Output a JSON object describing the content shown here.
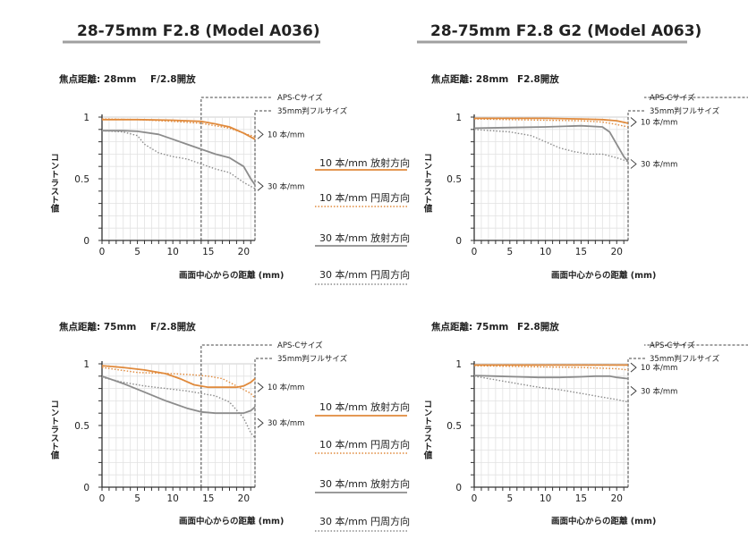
{
  "headers": {
    "left": "28-75mm F2.8 (Model A036)",
    "right": "28-75mm F2.8 G2 (Model A063)"
  },
  "legend": {
    "items": [
      {
        "label": "10 本/mm 放射方向",
        "color": "#e08a3c",
        "style": "solid"
      },
      {
        "label": "10 本/mm 円周方向",
        "color": "#e08a3c",
        "style": "dotted"
      },
      {
        "label": "30 本/mm 放射方向",
        "color": "#8c8c8c",
        "style": "solid"
      },
      {
        "label": "30 本/mm 円周方向",
        "color": "#8c8c8c",
        "style": "dotted"
      }
    ]
  },
  "chart_data": [
    {
      "type": "line",
      "title": "焦点距離: 28mm",
      "subtitle": "F/2.8開放",
      "xlabel": "画面中心からの距離 (mm)",
      "ylabel": "コントラスト値",
      "xlim": [
        0,
        21.6
      ],
      "ylim": [
        0,
        1
      ],
      "xticks": [
        0,
        5,
        10,
        15,
        20
      ],
      "yticks": [
        0,
        0.5,
        1
      ],
      "ytick_labels": [
        "0",
        "0.5",
        "1"
      ],
      "aps_c_label": "APS-Cサイズ",
      "full_frame_label": "35mm判フルサイズ",
      "aps_c_limit": 14,
      "full_frame_limit": 21.6,
      "annotations": [
        {
          "text": "10 本/mm",
          "y": 0.86
        },
        {
          "text": "30 本/mm",
          "y": 0.44
        }
      ],
      "series": [
        {
          "color": "#e08a3c",
          "style": "solid",
          "x": [
            0,
            5,
            10,
            14,
            16,
            18,
            20,
            21.6
          ],
          "y": [
            0.98,
            0.98,
            0.975,
            0.965,
            0.945,
            0.92,
            0.87,
            0.82
          ]
        },
        {
          "color": "#e08a3c",
          "style": "dotted",
          "x": [
            0,
            5,
            10,
            14,
            16,
            18,
            20,
            21.6
          ],
          "y": [
            0.985,
            0.98,
            0.965,
            0.95,
            0.93,
            0.91,
            0.87,
            0.84
          ]
        },
        {
          "color": "#8c8c8c",
          "style": "solid",
          "x": [
            0,
            3,
            5,
            8,
            10,
            12,
            14,
            16,
            18,
            20,
            21,
            21.6
          ],
          "y": [
            0.89,
            0.89,
            0.885,
            0.86,
            0.82,
            0.78,
            0.74,
            0.7,
            0.67,
            0.6,
            0.5,
            0.45
          ]
        },
        {
          "color": "#8c8c8c",
          "style": "dotted",
          "x": [
            0,
            3,
            5,
            6,
            8,
            10,
            12,
            14,
            16,
            18,
            20,
            21.6
          ],
          "y": [
            0.89,
            0.88,
            0.85,
            0.78,
            0.71,
            0.68,
            0.66,
            0.62,
            0.58,
            0.55,
            0.47,
            0.42
          ]
        }
      ]
    },
    {
      "type": "line",
      "title": "焦点距離: 28mm",
      "subtitle": "F2.8開放",
      "xlabel": "画面中心からの距離 (mm)",
      "ylabel": "コントラスト値",
      "xlim": [
        0,
        21.6
      ],
      "ylim": [
        0,
        1
      ],
      "xticks": [
        0,
        5,
        10,
        15,
        20
      ],
      "yticks": [
        0,
        0.5,
        1
      ],
      "ytick_labels": [
        "0",
        "0.5",
        "1"
      ],
      "aps_c_label": "APS-Cサイズ",
      "full_frame_label": "35mm判フルサイズ",
      "aps_c_limit": 14,
      "full_frame_limit": 21.6,
      "annotations": [
        {
          "text": "10 本/mm",
          "y": 0.96
        },
        {
          "text": "30 本/mm",
          "y": 0.62
        }
      ],
      "series": [
        {
          "color": "#e08a3c",
          "style": "solid",
          "x": [
            0,
            5,
            10,
            15,
            18,
            20,
            21.6
          ],
          "y": [
            0.99,
            0.99,
            0.99,
            0.985,
            0.98,
            0.97,
            0.95
          ]
        },
        {
          "color": "#e08a3c",
          "style": "dotted",
          "x": [
            0,
            5,
            10,
            15,
            18,
            20,
            21.6
          ],
          "y": [
            0.985,
            0.98,
            0.975,
            0.97,
            0.96,
            0.94,
            0.92
          ]
        },
        {
          "color": "#8c8c8c",
          "style": "solid",
          "x": [
            0,
            5,
            10,
            15,
            18,
            19,
            20,
            21,
            21.6
          ],
          "y": [
            0.91,
            0.915,
            0.92,
            0.93,
            0.92,
            0.88,
            0.78,
            0.68,
            0.64
          ]
        },
        {
          "color": "#8c8c8c",
          "style": "dotted",
          "x": [
            0,
            5,
            8,
            10,
            12,
            14,
            16,
            18,
            20,
            21.6
          ],
          "y": [
            0.9,
            0.88,
            0.85,
            0.8,
            0.75,
            0.72,
            0.7,
            0.7,
            0.67,
            0.64
          ]
        }
      ]
    },
    {
      "type": "line",
      "title": "焦点距離: 75mm",
      "subtitle": "F/2.8開放",
      "xlabel": "画面中心からの距離 (mm)",
      "ylabel": "コントラスト値",
      "xlim": [
        0,
        21.6
      ],
      "ylim": [
        0,
        1
      ],
      "xticks": [
        0,
        5,
        10,
        15,
        20
      ],
      "yticks": [
        0,
        0.5,
        1
      ],
      "ytick_labels": [
        "0",
        "0.5",
        "1"
      ],
      "aps_c_label": "APS-Cサイズ",
      "full_frame_label": "35mm判フルサイズ",
      "aps_c_limit": 14,
      "full_frame_limit": 21.6,
      "annotations": [
        {
          "text": "10 本/mm",
          "y": 0.81
        },
        {
          "text": "30 本/mm",
          "y": 0.52
        }
      ],
      "series": [
        {
          "color": "#e08a3c",
          "style": "solid",
          "x": [
            0,
            3,
            6,
            9,
            11,
            13,
            15,
            17,
            19,
            20,
            21,
            21.6
          ],
          "y": [
            0.985,
            0.97,
            0.95,
            0.92,
            0.88,
            0.83,
            0.81,
            0.81,
            0.81,
            0.82,
            0.85,
            0.88
          ]
        },
        {
          "color": "#e08a3c",
          "style": "dotted",
          "x": [
            0,
            5,
            10,
            13,
            15,
            17,
            19,
            21,
            21.6
          ],
          "y": [
            0.97,
            0.93,
            0.92,
            0.91,
            0.9,
            0.88,
            0.82,
            0.76,
            0.72
          ]
        },
        {
          "color": "#8c8c8c",
          "style": "solid",
          "x": [
            0,
            3,
            6,
            9,
            12,
            14,
            16,
            18,
            20,
            21,
            21.6
          ],
          "y": [
            0.9,
            0.84,
            0.77,
            0.7,
            0.64,
            0.61,
            0.6,
            0.6,
            0.6,
            0.62,
            0.65
          ]
        },
        {
          "color": "#8c8c8c",
          "style": "dotted",
          "x": [
            0,
            3,
            6,
            9,
            12,
            14,
            16,
            18,
            20,
            21,
            21.6
          ],
          "y": [
            0.89,
            0.85,
            0.82,
            0.8,
            0.78,
            0.76,
            0.74,
            0.69,
            0.56,
            0.44,
            0.4
          ]
        }
      ]
    },
    {
      "type": "line",
      "title": "焦点距離: 75mm",
      "subtitle": "F2.8開放",
      "xlabel": "画面中心からの距離 (mm)",
      "ylabel": "コントラスト値",
      "xlim": [
        0,
        21.6
      ],
      "ylim": [
        0,
        1
      ],
      "xticks": [
        0,
        5,
        10,
        15,
        20
      ],
      "yticks": [
        0,
        0.5,
        1
      ],
      "ytick_labels": [
        "0",
        "0.5",
        "1"
      ],
      "aps_c_label": "APS-Cサイズ",
      "full_frame_label": "35mm判フルサイズ",
      "aps_c_limit": 14,
      "full_frame_limit": 21.6,
      "annotations": [
        {
          "text": "10 本/mm",
          "y": 0.97
        },
        {
          "text": "30 本/mm",
          "y": 0.78
        }
      ],
      "series": [
        {
          "color": "#e08a3c",
          "style": "solid",
          "x": [
            0,
            5,
            10,
            15,
            20,
            21.6
          ],
          "y": [
            0.99,
            0.99,
            0.99,
            0.99,
            0.99,
            0.99
          ]
        },
        {
          "color": "#e08a3c",
          "style": "dotted",
          "x": [
            0,
            5,
            10,
            15,
            20,
            21.6
          ],
          "y": [
            0.985,
            0.98,
            0.975,
            0.97,
            0.96,
            0.95
          ]
        },
        {
          "color": "#8c8c8c",
          "style": "solid",
          "x": [
            0,
            3,
            6,
            9,
            12,
            15,
            17,
            19,
            20,
            21.6
          ],
          "y": [
            0.905,
            0.9,
            0.895,
            0.89,
            0.89,
            0.895,
            0.9,
            0.9,
            0.89,
            0.88
          ]
        },
        {
          "color": "#8c8c8c",
          "style": "dotted",
          "x": [
            0,
            3,
            6,
            9,
            12,
            14,
            16,
            18,
            20,
            21.6
          ],
          "y": [
            0.9,
            0.87,
            0.84,
            0.81,
            0.79,
            0.77,
            0.75,
            0.73,
            0.71,
            0.69
          ]
        }
      ]
    }
  ]
}
